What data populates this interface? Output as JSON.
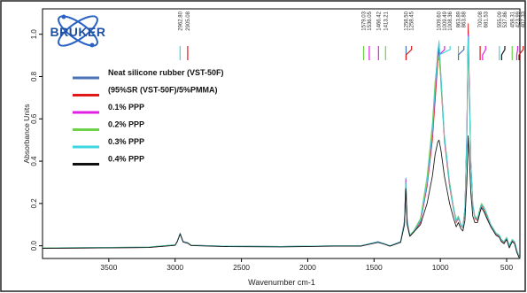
{
  "logo": {
    "text": "BRUKER",
    "colors": {
      "primary": "#1f4fa0",
      "orbit": "#2a63c4"
    }
  },
  "chart_data": {
    "type": "line",
    "title": "",
    "xlabel": "Wavenumber cm-1",
    "ylabel": "Absorbance Units",
    "xlim": [
      4000,
      400
    ],
    "ylim": [
      -0.06,
      1.12
    ],
    "x_ticks": [
      3500,
      3000,
      2500,
      2000,
      1500,
      1000,
      500
    ],
    "y_ticks": [
      0.0,
      0.2,
      0.4,
      0.6,
      0.8,
      1.0
    ],
    "y_tick_labels": [
      "0.0",
      "0.2",
      "0.4",
      "0.6",
      "0.8",
      "1.0"
    ],
    "grid": false,
    "legend_position": "top-left",
    "peak_labels": [
      "2962.80",
      "2905.08",
      "1579.03",
      "1536.05",
      "1466.42",
      "1413.21",
      "1258.50",
      "1258.45",
      "1009.60",
      "1009.49",
      "1008.36",
      "863.89",
      "863.88",
      "700.08",
      "681.53",
      "555.09",
      "537.86",
      "458.31",
      "423.99",
      "407.33"
    ],
    "series": [
      {
        "name": "Neat silicone rubber (VST-50F)",
        "color": "#4a73b8",
        "x": [
          4000,
          3200,
          3000,
          2985,
          2962,
          2940,
          2905,
          2880,
          2600,
          2200,
          1800,
          1600,
          1470,
          1420,
          1380,
          1300,
          1270,
          1260,
          1250,
          1230,
          1200,
          1150,
          1100,
          1060,
          1040,
          1020,
          1010,
          995,
          970,
          930,
          900,
          880,
          864,
          845,
          830,
          815,
          800,
          790,
          780,
          770,
          755,
          740,
          720,
          700,
          690,
          670,
          650,
          620,
          600,
          580,
          555,
          540,
          520,
          500,
          480,
          458,
          440,
          424,
          407,
          400
        ],
        "y": [
          -0.01,
          -0.006,
          0.005,
          0.02,
          0.06,
          0.02,
          0.015,
          0.003,
          -0.002,
          -0.003,
          0.0,
          0.0,
          0.02,
          0.01,
          0.0,
          0.02,
          0.12,
          0.32,
          0.12,
          0.05,
          0.07,
          0.12,
          0.3,
          0.55,
          0.75,
          0.92,
          0.96,
          0.8,
          0.52,
          0.3,
          0.18,
          0.12,
          0.14,
          0.1,
          0.09,
          0.18,
          0.55,
          1.02,
          0.7,
          0.4,
          0.2,
          0.14,
          0.13,
          0.18,
          0.2,
          0.18,
          0.15,
          0.1,
          0.08,
          0.06,
          0.05,
          0.03,
          0.02,
          0.04,
          0.0,
          0.03,
          0.02,
          -0.02,
          -0.05,
          -0.06
        ]
      },
      {
        "name": "(95%SR (VST-50F)/5%PMMA)",
        "color": "#e01818",
        "x": [
          4000,
          3200,
          3000,
          2985,
          2962,
          2940,
          2905,
          2880,
          2600,
          2200,
          1800,
          1600,
          1470,
          1420,
          1380,
          1300,
          1270,
          1260,
          1250,
          1230,
          1200,
          1150,
          1100,
          1060,
          1040,
          1020,
          1010,
          995,
          970,
          930,
          900,
          880,
          864,
          845,
          830,
          815,
          800,
          790,
          780,
          770,
          755,
          740,
          720,
          700,
          690,
          670,
          650,
          620,
          600,
          580,
          555,
          540,
          520,
          500,
          480,
          458,
          440,
          424,
          407,
          400
        ],
        "y": [
          -0.012,
          -0.008,
          0.003,
          0.02,
          0.058,
          0.02,
          0.014,
          0.002,
          -0.003,
          -0.004,
          -0.001,
          -0.001,
          0.018,
          0.008,
          -0.001,
          0.018,
          0.11,
          0.3,
          0.11,
          0.045,
          0.065,
          0.11,
          0.28,
          0.5,
          0.68,
          0.86,
          0.93,
          0.76,
          0.5,
          0.28,
          0.17,
          0.11,
          0.13,
          0.095,
          0.085,
          0.17,
          0.52,
          1.05,
          0.72,
          0.39,
          0.19,
          0.13,
          0.12,
          0.17,
          0.19,
          0.17,
          0.14,
          0.095,
          0.075,
          0.055,
          0.045,
          0.025,
          0.015,
          0.035,
          -0.005,
          0.025,
          0.015,
          -0.025,
          -0.05,
          -0.06
        ]
      },
      {
        "name": "0.1% PPP",
        "color": "#e020e0",
        "x": [
          4000,
          3200,
          3000,
          2985,
          2962,
          2940,
          2905,
          2880,
          2600,
          2200,
          1800,
          1600,
          1470,
          1420,
          1380,
          1300,
          1270,
          1260,
          1250,
          1230,
          1200,
          1150,
          1100,
          1060,
          1040,
          1020,
          1010,
          995,
          970,
          930,
          900,
          880,
          864,
          845,
          830,
          815,
          800,
          790,
          780,
          770,
          755,
          740,
          720,
          700,
          690,
          670,
          650,
          620,
          600,
          580,
          555,
          540,
          520,
          500,
          480,
          458,
          440,
          424,
          407,
          400
        ],
        "y": [
          -0.011,
          -0.007,
          0.004,
          0.021,
          0.059,
          0.021,
          0.015,
          0.003,
          -0.002,
          -0.003,
          0.0,
          0.0,
          0.019,
          0.009,
          0.0,
          0.019,
          0.115,
          0.31,
          0.115,
          0.048,
          0.068,
          0.115,
          0.29,
          0.53,
          0.72,
          0.9,
          0.95,
          0.79,
          0.51,
          0.29,
          0.175,
          0.115,
          0.135,
          0.098,
          0.088,
          0.175,
          0.54,
          1.0,
          0.69,
          0.39,
          0.19,
          0.135,
          0.125,
          0.175,
          0.195,
          0.175,
          0.145,
          0.098,
          0.078,
          0.058,
          0.048,
          0.028,
          0.018,
          0.038,
          -0.002,
          0.028,
          0.018,
          -0.022,
          -0.052,
          -0.06
        ]
      },
      {
        "name": "0.2% PPP",
        "color": "#6ed14a",
        "x": [
          4000,
          3200,
          3000,
          2985,
          2962,
          2940,
          2905,
          2880,
          2600,
          2200,
          1800,
          1600,
          1470,
          1420,
          1380,
          1300,
          1270,
          1260,
          1250,
          1230,
          1200,
          1150,
          1100,
          1060,
          1040,
          1020,
          1010,
          995,
          970,
          930,
          900,
          880,
          864,
          845,
          830,
          815,
          800,
          790,
          780,
          770,
          755,
          740,
          720,
          700,
          690,
          670,
          650,
          620,
          600,
          580,
          555,
          540,
          520,
          500,
          480,
          458,
          440,
          424,
          407,
          400
        ],
        "y": [
          -0.01,
          -0.006,
          0.005,
          0.02,
          0.057,
          0.02,
          0.015,
          0.003,
          -0.002,
          -0.003,
          0.0,
          0.0,
          0.018,
          0.009,
          0.0,
          0.018,
          0.11,
          0.29,
          0.11,
          0.05,
          0.072,
          0.13,
          0.33,
          0.58,
          0.78,
          0.88,
          0.9,
          0.77,
          0.52,
          0.3,
          0.18,
          0.12,
          0.14,
          0.1,
          0.09,
          0.17,
          0.5,
          0.96,
          0.66,
          0.38,
          0.19,
          0.14,
          0.13,
          0.18,
          0.2,
          0.18,
          0.15,
          0.1,
          0.08,
          0.06,
          0.05,
          0.03,
          0.02,
          0.04,
          0.0,
          0.03,
          0.02,
          -0.02,
          -0.05,
          -0.06
        ]
      },
      {
        "name": "0.3% PPP",
        "color": "#3fd6e0",
        "x": [
          4000,
          3200,
          3000,
          2985,
          2962,
          2940,
          2905,
          2880,
          2600,
          2200,
          1800,
          1600,
          1470,
          1420,
          1380,
          1300,
          1270,
          1260,
          1250,
          1230,
          1200,
          1150,
          1100,
          1060,
          1040,
          1020,
          1010,
          995,
          970,
          930,
          900,
          880,
          864,
          845,
          830,
          815,
          800,
          790,
          780,
          770,
          755,
          740,
          720,
          700,
          690,
          670,
          650,
          620,
          600,
          580,
          555,
          540,
          520,
          500,
          480,
          458,
          440,
          424,
          407,
          400
        ],
        "y": [
          -0.011,
          -0.007,
          0.004,
          0.02,
          0.058,
          0.02,
          0.014,
          0.002,
          -0.002,
          -0.003,
          0.0,
          0.0,
          0.019,
          0.009,
          0.0,
          0.019,
          0.112,
          0.3,
          0.112,
          0.047,
          0.068,
          0.118,
          0.3,
          0.54,
          0.74,
          0.91,
          0.97,
          0.8,
          0.52,
          0.29,
          0.175,
          0.115,
          0.135,
          0.098,
          0.088,
          0.175,
          0.53,
          0.99,
          0.68,
          0.39,
          0.19,
          0.135,
          0.125,
          0.175,
          0.195,
          0.175,
          0.145,
          0.098,
          0.078,
          0.058,
          0.048,
          0.028,
          0.018,
          0.038,
          -0.002,
          0.028,
          0.018,
          -0.022,
          -0.052,
          -0.06
        ]
      },
      {
        "name": "0.4% PPP",
        "color": "#111111",
        "x": [
          4000,
          3200,
          3000,
          2985,
          2962,
          2940,
          2905,
          2880,
          2600,
          2200,
          1800,
          1600,
          1470,
          1420,
          1380,
          1300,
          1270,
          1260,
          1250,
          1230,
          1200,
          1150,
          1100,
          1060,
          1040,
          1020,
          1010,
          995,
          970,
          930,
          900,
          880,
          864,
          845,
          830,
          815,
          800,
          790,
          780,
          770,
          755,
          740,
          720,
          700,
          690,
          670,
          650,
          620,
          600,
          580,
          555,
          540,
          520,
          500,
          480,
          458,
          440,
          424,
          407,
          400
        ],
        "y": [
          -0.012,
          -0.008,
          0.002,
          0.018,
          0.055,
          0.018,
          0.012,
          0.001,
          -0.004,
          -0.005,
          -0.002,
          -0.002,
          0.016,
          0.007,
          -0.002,
          0.016,
          0.1,
          0.27,
          0.1,
          0.045,
          0.065,
          0.1,
          0.2,
          0.33,
          0.43,
          0.49,
          0.5,
          0.45,
          0.33,
          0.2,
          0.13,
          0.09,
          0.11,
          0.08,
          0.07,
          0.12,
          0.3,
          0.52,
          0.4,
          0.25,
          0.14,
          0.11,
          0.11,
          0.16,
          0.18,
          0.16,
          0.13,
          0.09,
          0.07,
          0.05,
          0.04,
          0.02,
          0.01,
          0.03,
          -0.01,
          0.02,
          0.01,
          -0.03,
          -0.055,
          -0.06
        ]
      }
    ]
  }
}
